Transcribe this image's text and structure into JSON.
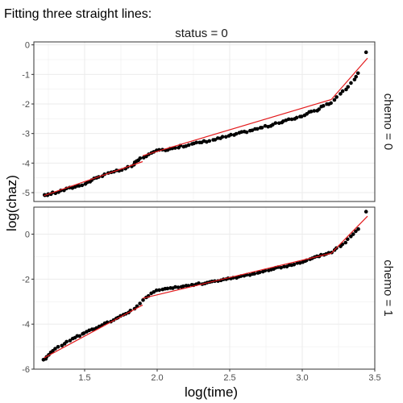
{
  "title": "Fitting three straight lines:",
  "xlabel": "log(time)",
  "ylabel": "log(chaz)",
  "facet_column_label": "status = 0",
  "colors": {
    "points": "#000000",
    "fit_line": "#e31a1c",
    "panel_border": "#333333",
    "grid": "#ebebeb",
    "strip_bg": "#ffffff"
  },
  "chart_data": [
    {
      "type": "scatter",
      "facet_row_label": "chemo = 0",
      "xlim": [
        1.15,
        3.5
      ],
      "ylim": [
        -5.3,
        0.1
      ],
      "x_ticks": [
        1.5,
        2.0,
        2.5,
        3.0,
        3.5
      ],
      "x_tick_labels": [
        "1.5",
        "2.0",
        "2.5",
        "3.0",
        "3.5"
      ],
      "y_ticks": [
        -5,
        -4,
        -3,
        -2,
        -1,
        0
      ],
      "y_tick_labels": [
        "-5",
        "-4",
        "-3",
        "-2",
        "-1",
        "0"
      ],
      "points_anchors": [
        [
          1.22,
          -5.1
        ],
        [
          1.25,
          -5.05
        ],
        [
          1.3,
          -5.0
        ],
        [
          1.4,
          -4.85
        ],
        [
          1.5,
          -4.7
        ],
        [
          1.6,
          -4.45
        ],
        [
          1.7,
          -4.3
        ],
        [
          1.78,
          -4.2
        ],
        [
          1.84,
          -4.05
        ],
        [
          1.87,
          -3.9
        ],
        [
          1.92,
          -3.75
        ],
        [
          2.0,
          -3.6
        ],
        [
          2.2,
          -3.4
        ],
        [
          2.4,
          -3.2
        ],
        [
          2.6,
          -2.95
        ],
        [
          2.8,
          -2.7
        ],
        [
          3.0,
          -2.4
        ],
        [
          3.1,
          -2.2
        ],
        [
          3.2,
          -1.95
        ],
        [
          3.3,
          -1.5
        ],
        [
          3.36,
          -1.2
        ],
        [
          3.4,
          -0.8
        ]
      ],
      "extra_points": [
        [
          3.44,
          -0.25
        ]
      ],
      "fit_lines": [
        {
          "x": [
            1.22,
            1.9
          ],
          "y": [
            -5.1,
            -3.95
          ]
        },
        {
          "x": [
            1.9,
            3.2
          ],
          "y": [
            -3.75,
            -1.85
          ]
        },
        {
          "x": [
            3.2,
            3.45
          ],
          "y": [
            -1.85,
            -0.45
          ]
        }
      ]
    },
    {
      "type": "scatter",
      "facet_row_label": "chemo = 1",
      "xlim": [
        1.15,
        3.5
      ],
      "ylim": [
        -6.0,
        1.2
      ],
      "x_ticks": [
        1.5,
        2.0,
        2.5,
        3.0,
        3.5
      ],
      "x_tick_labels": [
        "1.5",
        "2.0",
        "2.5",
        "3.0",
        "3.5"
      ],
      "y_ticks": [
        -6,
        -4,
        -2,
        0
      ],
      "y_tick_labels": [
        "-6",
        "-4",
        "-2",
        "0"
      ],
      "points_anchors": [
        [
          1.22,
          -5.6
        ],
        [
          1.25,
          -5.35
        ],
        [
          1.3,
          -5.1
        ],
        [
          1.4,
          -4.7
        ],
        [
          1.5,
          -4.4
        ],
        [
          1.6,
          -4.1
        ],
        [
          1.7,
          -3.8
        ],
        [
          1.8,
          -3.5
        ],
        [
          1.86,
          -3.2
        ],
        [
          1.92,
          -2.8
        ],
        [
          2.0,
          -2.5
        ],
        [
          2.2,
          -2.3
        ],
        [
          2.4,
          -2.1
        ],
        [
          2.6,
          -1.85
        ],
        [
          2.8,
          -1.55
        ],
        [
          3.0,
          -1.25
        ],
        [
          3.1,
          -1.0
        ],
        [
          3.2,
          -0.8
        ],
        [
          3.3,
          -0.35
        ],
        [
          3.4,
          0.35
        ]
      ],
      "extra_points": [
        [
          3.44,
          1.0
        ]
      ],
      "fit_lines": [
        {
          "x": [
            1.22,
            1.9
          ],
          "y": [
            -5.5,
            -3.15
          ]
        },
        {
          "x": [
            1.9,
            3.2
          ],
          "y": [
            -2.85,
            -0.85
          ]
        },
        {
          "x": [
            3.2,
            3.45
          ],
          "y": [
            -0.85,
            0.8
          ]
        }
      ]
    }
  ]
}
